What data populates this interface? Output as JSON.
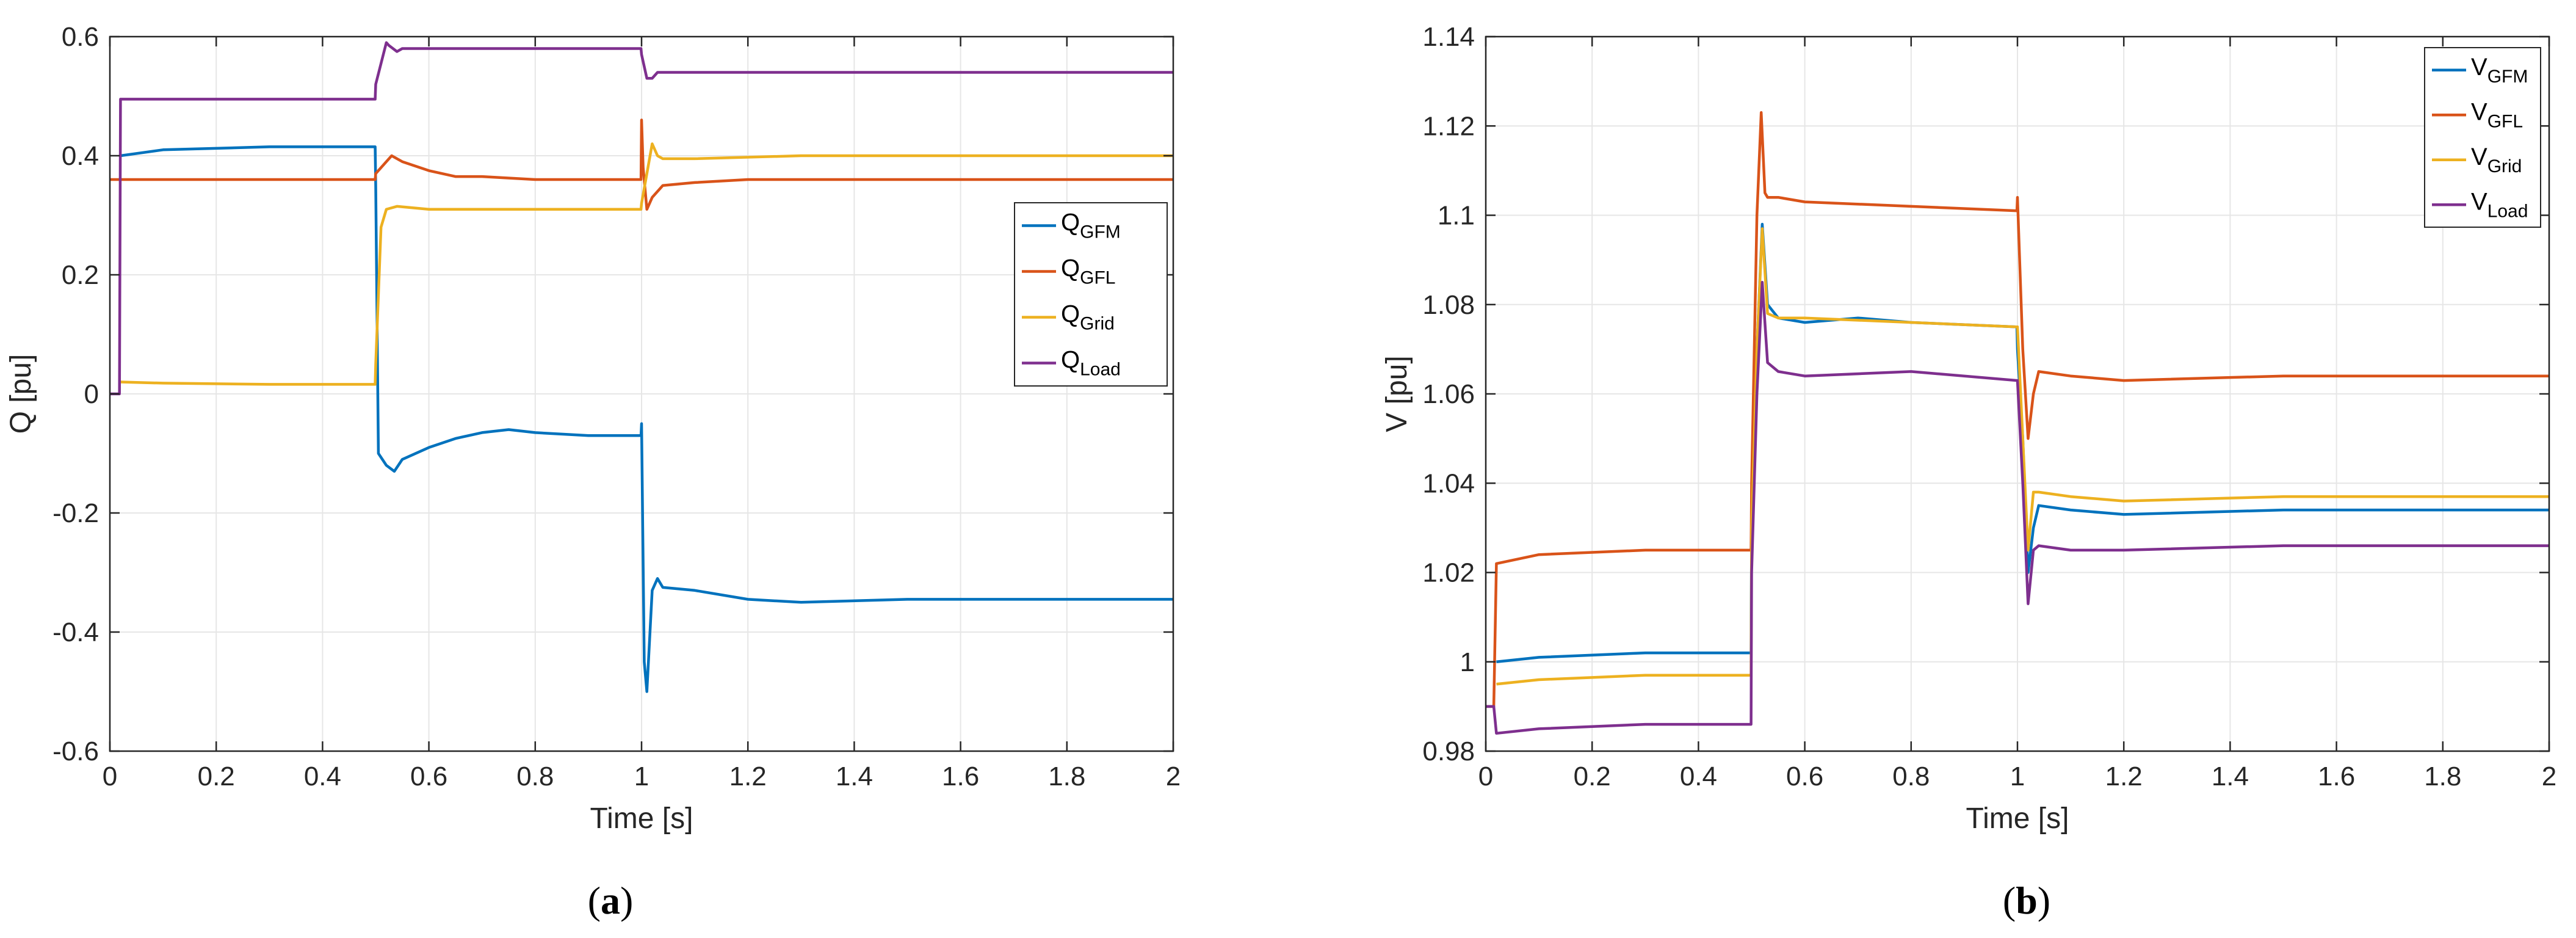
{
  "chart_data": [
    {
      "type": "line",
      "panel_label": {
        "open": "(",
        "letter": "a",
        "close": ")"
      },
      "xlabel": "Time [s]",
      "ylabel": "Q [pu]",
      "xlim": [
        0,
        2
      ],
      "ylim": [
        -0.6,
        0.6
      ],
      "xticks": [
        0,
        0.2,
        0.4,
        0.6,
        0.8,
        1,
        1.2,
        1.4,
        1.6,
        1.8,
        2
      ],
      "xtick_labels": [
        "0",
        "0.2",
        "0.4",
        "0.6",
        "0.8",
        "1",
        "1.2",
        "1.4",
        "1.6",
        "1.8",
        "2"
      ],
      "yticks": [
        -0.6,
        -0.4,
        -0.2,
        0,
        0.2,
        0.4,
        0.6
      ],
      "ytick_labels": [
        "-0.6",
        "-0.4",
        "-0.2",
        "0",
        "0.2",
        "0.4",
        "0.6"
      ],
      "grid": true,
      "legend": "right",
      "series": [
        {
          "name": "Q",
          "sub": "GFM",
          "color": "#0072BD",
          "x": [
            0.02,
            0.1,
            0.3,
            0.499,
            0.5,
            0.505,
            0.52,
            0.535,
            0.55,
            0.6,
            0.65,
            0.7,
            0.75,
            0.8,
            0.9,
            0.999,
            1.0,
            1.005,
            1.01,
            1.02,
            1.03,
            1.04,
            1.1,
            1.2,
            1.3,
            1.5,
            2.0
          ],
          "y": [
            0.4,
            0.41,
            0.415,
            0.415,
            0.35,
            -0.1,
            -0.12,
            -0.13,
            -0.11,
            -0.09,
            -0.075,
            -0.065,
            -0.06,
            -0.065,
            -0.07,
            -0.07,
            -0.05,
            -0.45,
            -0.5,
            -0.33,
            -0.31,
            -0.325,
            -0.33,
            -0.345,
            -0.35,
            -0.345,
            -0.345
          ]
        },
        {
          "name": "Q",
          "sub": "GFL",
          "color": "#D95319",
          "x": [
            0,
            0.499,
            0.5,
            0.51,
            0.53,
            0.55,
            0.6,
            0.65,
            0.7,
            0.8,
            0.999,
            1.0,
            1.003,
            1.01,
            1.02,
            1.04,
            1.1,
            1.2,
            1.5,
            2.0
          ],
          "y": [
            0.36,
            0.36,
            0.37,
            0.38,
            0.4,
            0.39,
            0.375,
            0.365,
            0.365,
            0.36,
            0.36,
            0.46,
            0.38,
            0.31,
            0.33,
            0.35,
            0.355,
            0.36,
            0.36,
            0.36
          ]
        },
        {
          "name": "Q",
          "sub": "Grid",
          "color": "#EDB120",
          "x": [
            0.02,
            0.1,
            0.3,
            0.499,
            0.5,
            0.51,
            0.52,
            0.54,
            0.6,
            0.8,
            0.999,
            1.0,
            1.01,
            1.02,
            1.03,
            1.04,
            1.1,
            1.3,
            2.0
          ],
          "y": [
            0.02,
            0.018,
            0.016,
            0.016,
            0.05,
            0.28,
            0.31,
            0.315,
            0.31,
            0.31,
            0.31,
            0.32,
            0.37,
            0.42,
            0.4,
            0.395,
            0.395,
            0.4,
            0.4
          ]
        },
        {
          "name": "Q",
          "sub": "Load",
          "color": "#7E2F8E",
          "x": [
            0,
            0.018,
            0.02,
            0.1,
            0.3,
            0.499,
            0.5,
            0.52,
            0.525,
            0.54,
            0.55,
            0.6,
            0.8,
            0.999,
            1.0,
            1.01,
            1.02,
            1.03,
            1.1,
            2.0
          ],
          "y": [
            0,
            0,
            0.495,
            0.495,
            0.495,
            0.495,
            0.52,
            0.59,
            0.585,
            0.575,
            0.58,
            0.58,
            0.58,
            0.58,
            0.57,
            0.53,
            0.53,
            0.54,
            0.54,
            0.54
          ]
        }
      ]
    },
    {
      "type": "line",
      "panel_label": {
        "open": "(",
        "letter": "b",
        "close": ")"
      },
      "xlabel": "Time [s]",
      "ylabel": "V [pu]",
      "xlim": [
        0,
        2
      ],
      "ylim": [
        0.98,
        1.14
      ],
      "xticks": [
        0,
        0.2,
        0.4,
        0.6,
        0.8,
        1,
        1.2,
        1.4,
        1.6,
        1.8,
        2
      ],
      "xtick_labels": [
        "0",
        "0.2",
        "0.4",
        "0.6",
        "0.8",
        "1",
        "1.2",
        "1.4",
        "1.6",
        "1.8",
        "2"
      ],
      "yticks": [
        0.98,
        1,
        1.02,
        1.04,
        1.06,
        1.08,
        1.1,
        1.12,
        1.14
      ],
      "ytick_labels": [
        "0.98",
        "1",
        "1.02",
        "1.04",
        "1.06",
        "1.08",
        "1.1",
        "1.12",
        "1.14"
      ],
      "grid": true,
      "legend": "top-right",
      "series": [
        {
          "name": "V",
          "sub": "GFM",
          "color": "#0072BD",
          "x": [
            0.02,
            0.1,
            0.3,
            0.499,
            0.5,
            0.51,
            0.52,
            0.53,
            0.55,
            0.6,
            0.7,
            0.8,
            0.999,
            1.0,
            1.01,
            1.02,
            1.03,
            1.04,
            1.1,
            1.2,
            1.5,
            2.0
          ],
          "y": [
            1.0,
            1.001,
            1.002,
            1.002,
            1.03,
            1.07,
            1.098,
            1.08,
            1.077,
            1.076,
            1.077,
            1.076,
            1.075,
            1.07,
            1.05,
            1.02,
            1.03,
            1.035,
            1.034,
            1.033,
            1.034,
            1.034
          ]
        },
        {
          "name": "V",
          "sub": "GFL",
          "color": "#D95319",
          "x": [
            0,
            0.015,
            0.02,
            0.1,
            0.3,
            0.499,
            0.5,
            0.51,
            0.518,
            0.525,
            0.53,
            0.55,
            0.6,
            0.8,
            0.999,
            1.0,
            1.01,
            1.02,
            1.03,
            1.04,
            1.1,
            1.2,
            1.5,
            2.0
          ],
          "y": [
            0.99,
            0.99,
            1.022,
            1.024,
            1.025,
            1.025,
            1.04,
            1.1,
            1.123,
            1.105,
            1.104,
            1.104,
            1.103,
            1.102,
            1.101,
            1.104,
            1.07,
            1.05,
            1.06,
            1.065,
            1.064,
            1.063,
            1.064,
            1.064
          ]
        },
        {
          "name": "V",
          "sub": "Grid",
          "color": "#EDB120",
          "x": [
            0.02,
            0.1,
            0.3,
            0.499,
            0.5,
            0.51,
            0.52,
            0.53,
            0.55,
            0.6,
            0.8,
            0.999,
            1.0,
            1.01,
            1.02,
            1.03,
            1.04,
            1.1,
            1.2,
            1.5,
            2.0
          ],
          "y": [
            0.995,
            0.996,
            0.997,
            0.997,
            1.03,
            1.07,
            1.097,
            1.078,
            1.077,
            1.077,
            1.076,
            1.075,
            1.075,
            1.05,
            1.025,
            1.038,
            1.038,
            1.037,
            1.036,
            1.037,
            1.037
          ]
        },
        {
          "name": "V",
          "sub": "Load",
          "color": "#7E2F8E",
          "x": [
            0,
            0.015,
            0.02,
            0.1,
            0.3,
            0.499,
            0.5,
            0.51,
            0.52,
            0.53,
            0.55,
            0.6,
            0.8,
            0.999,
            1.0,
            1.01,
            1.02,
            1.03,
            1.04,
            1.1,
            1.2,
            1.5,
            2.0
          ],
          "y": [
            0.99,
            0.99,
            0.984,
            0.985,
            0.986,
            0.986,
            1.02,
            1.06,
            1.085,
            1.067,
            1.065,
            1.064,
            1.065,
            1.063,
            1.063,
            1.04,
            1.013,
            1.025,
            1.026,
            1.025,
            1.025,
            1.026,
            1.026
          ]
        }
      ]
    }
  ]
}
